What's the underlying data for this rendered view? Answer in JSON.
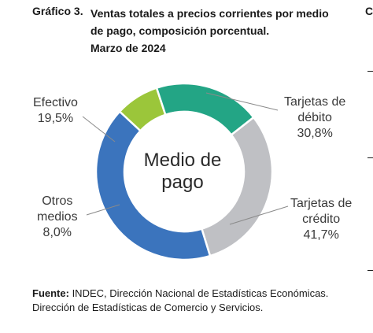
{
  "header": {
    "figure_number": "Gráfico 3.",
    "title_lines": [
      "Ventas totales a precios corrientes por medio",
      "de pago, composición porcentual.",
      "Marzo de 2024"
    ],
    "side_letter": "C"
  },
  "chart_data": {
    "type": "pie",
    "donut": true,
    "center_label_lines": [
      "Medio de",
      "pago"
    ],
    "slices": [
      {
        "label_lines": [
          "Tarjetas de",
          "débito"
        ],
        "value": 30.8,
        "value_label": "30,8%",
        "color": "#bfc0c4"
      },
      {
        "label_lines": [
          "Tarjetas de",
          "crédito"
        ],
        "value": 41.7,
        "value_label": "41,7%",
        "color": "#3b74bd"
      },
      {
        "label_lines": [
          "Otros",
          "medios"
        ],
        "value": 8.0,
        "value_label": "8,0%",
        "color": "#9bc63a"
      },
      {
        "label_lines": [
          "Efectivo"
        ],
        "value": 19.5,
        "value_label": "19,5%",
        "color": "#23a585"
      }
    ],
    "start_angle_deg": -38
  },
  "source": {
    "label": "Fuente:",
    "line1": " INDEC, Dirección Nacional de Estadísticas Económicas.",
    "line2": "Dirección de Estadísticas de Comercio y Servicios."
  }
}
